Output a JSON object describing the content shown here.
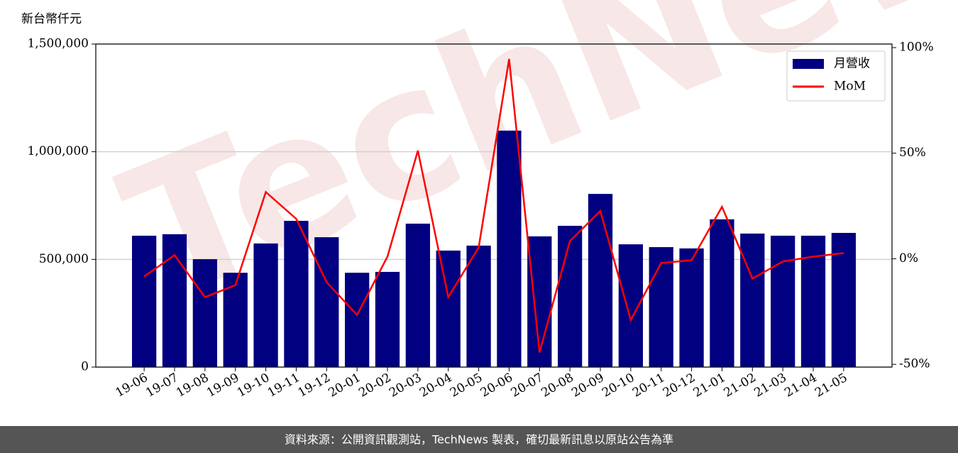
{
  "chart_data": {
    "type": "combo",
    "y_label": "新台幣仟元",
    "watermark": "TechNews",
    "categories": [
      "19-06",
      "19-07",
      "19-08",
      "19-09",
      "19-10",
      "19-11",
      "19-12",
      "20-01",
      "20-02",
      "20-03",
      "20-04",
      "20-05",
      "20-06",
      "20-07",
      "20-08",
      "20-09",
      "20-10",
      "20-11",
      "20-12",
      "21-01",
      "21-02",
      "21-03",
      "21-04",
      "21-05"
    ],
    "series": [
      {
        "name": "月營收",
        "type": "bar",
        "color": "#000080",
        "values": [
          610000,
          617000,
          501000,
          438000,
          574000,
          679000,
          603000,
          438000,
          442000,
          666000,
          541000,
          564000,
          1098000,
          607000,
          656000,
          804000,
          570000,
          557000,
          551000,
          686000,
          620000,
          610000,
          610000,
          623000
        ]
      },
      {
        "name": "MoM",
        "type": "line",
        "color": "#ff0000",
        "axis": "y2",
        "values": [
          -8.4,
          1.7,
          -18.2,
          -12.5,
          31.6,
          18.9,
          -11.1,
          -26.6,
          1.0,
          51.2,
          -18.2,
          5.4,
          94.6,
          -44.4,
          8.4,
          22.6,
          -29.0,
          -2.0,
          -0.7,
          24.6,
          -9.4,
          -1.3,
          1.0,
          2.7
        ]
      }
    ],
    "ylim": [
      0,
      1500000
    ],
    "yticks": [
      {
        "value": 0,
        "label": "0"
      },
      {
        "value": 500000,
        "label": "500,000"
      },
      {
        "value": 1000000,
        "label": "1,000,000"
      },
      {
        "value": 1500000,
        "label": "1,500,000"
      }
    ],
    "y2lim": [
      -51.3,
      101.7
    ],
    "y2ticks": [
      {
        "value": -50,
        "label": "-50%"
      },
      {
        "value": 0,
        "label": "0%"
      },
      {
        "value": 50,
        "label": "50%"
      },
      {
        "value": 100,
        "label": "100%"
      }
    ],
    "grid": true,
    "legend": "upper-right",
    "source": "資料來源：公開資訊觀測站，TechNews 製表，確切最新訊息以原站公告為準"
  }
}
